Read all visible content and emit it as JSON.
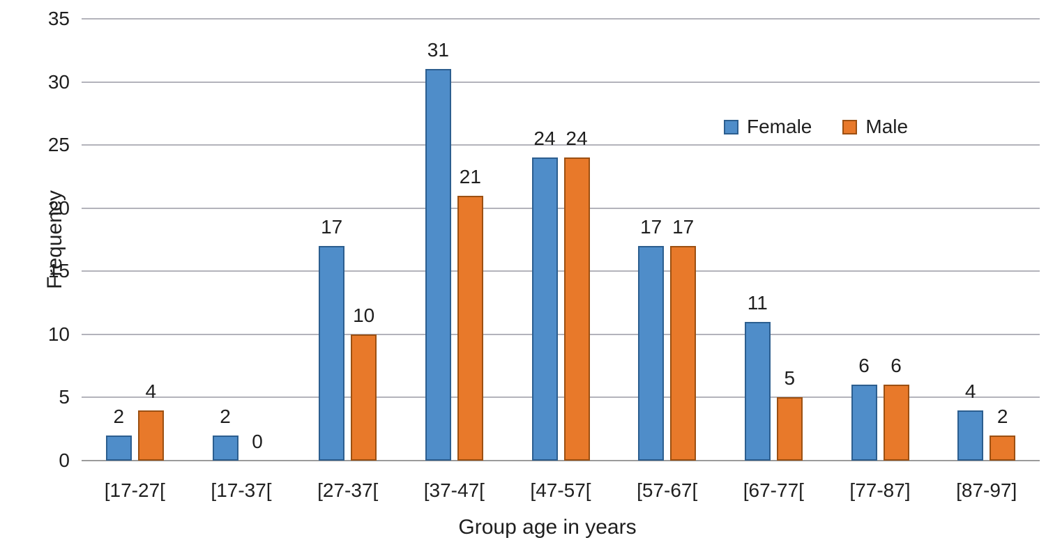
{
  "chart_data": {
    "type": "bar",
    "title": "",
    "xlabel": "Group age in years",
    "ylabel": "Frequency",
    "categories": [
      "[17-27[",
      "[17-37[",
      "[27-37[",
      "[37-47[",
      "[47-57[",
      "[57-67[",
      "[67-77[",
      "[77-87]",
      "[87-97]"
    ],
    "series": [
      {
        "name": "Female",
        "color": "#4F8DC9",
        "border_color": "#2C5E8F",
        "values": [
          2,
          2,
          17,
          31,
          24,
          17,
          11,
          6,
          4
        ]
      },
      {
        "name": "Male",
        "color": "#E8792A",
        "border_color": "#9C5012",
        "values": [
          4,
          0,
          10,
          21,
          24,
          17,
          5,
          6,
          2
        ]
      }
    ],
    "ylim": [
      0,
      35
    ],
    "ytick_step": 5,
    "yticks": [
      "0",
      "5",
      "10",
      "15",
      "20",
      "25",
      "30",
      "35"
    ],
    "grid": true,
    "legend_position": "inside-top-right",
    "data_labels": true,
    "gridline_color": "#b3b3bb",
    "axisline_color": "#9b9b9b",
    "text_color": "#1f1f1f",
    "background": "#ffffff"
  }
}
